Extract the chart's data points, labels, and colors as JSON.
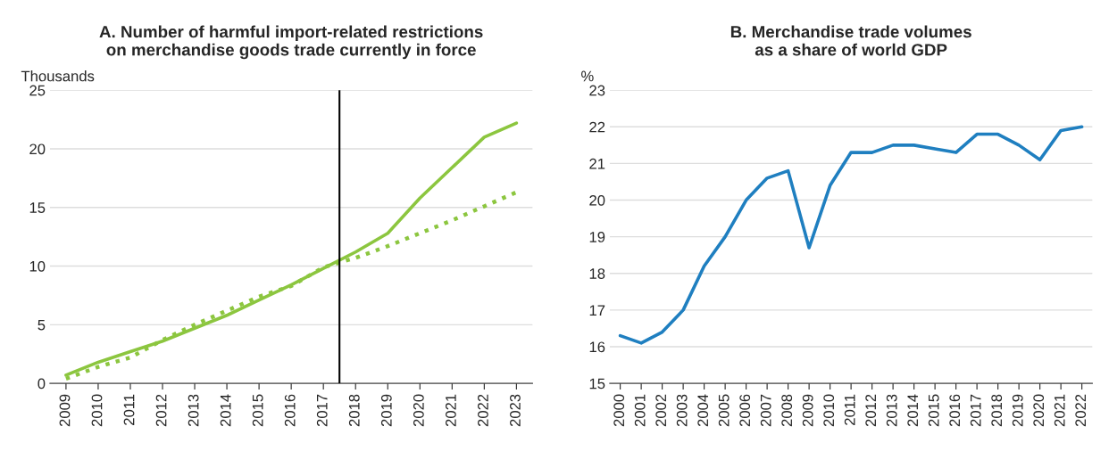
{
  "chart_data": [
    {
      "type": "line",
      "title": "A. Number of harmful import-related restrictions\non merchandise goods trade currently in force",
      "ylabel": "Thousands",
      "x": [
        2009,
        2010,
        2011,
        2012,
        2013,
        2014,
        2015,
        2016,
        2017,
        2018,
        2019,
        2020,
        2021,
        2022,
        2023
      ],
      "xlim": [
        2008.5,
        2023.5
      ],
      "xticks": [
        2009,
        2010,
        2011,
        2012,
        2013,
        2014,
        2015,
        2016,
        2017,
        2018,
        2019,
        2020,
        2021,
        2022,
        2023
      ],
      "ylim": [
        0,
        25
      ],
      "yticks": [
        0,
        5,
        10,
        15,
        20,
        25
      ],
      "grid": "y",
      "legend": false,
      "series": [
        {
          "color": "#8cc63f",
          "line_style": "solid",
          "values": [
            0.7,
            1.8,
            2.7,
            3.6,
            4.7,
            5.8,
            7.1,
            8.4,
            9.8,
            11.2,
            12.8,
            15.8,
            18.4,
            21.0,
            22.2
          ]
        },
        {
          "color": "#8cc63f",
          "line_style": "dotted",
          "values": [
            0.4,
            1.4,
            2.2,
            3.7,
            5.0,
            6.2,
            7.4,
            8.3,
            9.9,
            10.7,
            11.7,
            12.8,
            13.9,
            15.1,
            16.3
          ]
        }
      ],
      "ref_lines": [
        {
          "axis": "x",
          "value": 2017.5,
          "color": "#000000",
          "line_style": "solid"
        }
      ]
    },
    {
      "type": "line",
      "title": "B. Merchandise trade volumes\nas a share of world GDP",
      "ylabel": "%",
      "categories": [
        "2000",
        "2001",
        "2002",
        "2003",
        "2004",
        "2005",
        "2006",
        "2007",
        "2008",
        "2009",
        "2010",
        "2011",
        "2012",
        "2013",
        "2014",
        "2015",
        "2016",
        "2017",
        "2018",
        "2019",
        "2020",
        "2021",
        "2022"
      ],
      "ylim": [
        15,
        23
      ],
      "yticks": [
        15,
        16,
        17,
        18,
        19,
        20,
        21,
        22,
        23
      ],
      "grid": "y",
      "legend": false,
      "series": [
        {
          "color": "#1f7fc0",
          "line_style": "solid",
          "values": [
            16.3,
            16.1,
            16.4,
            17.0,
            18.2,
            19.0,
            20.0,
            20.6,
            20.8,
            18.7,
            20.4,
            21.3,
            21.3,
            21.5,
            21.5,
            21.4,
            21.3,
            21.8,
            21.8,
            21.5,
            21.1,
            21.9,
            22.0
          ]
        }
      ]
    }
  ]
}
